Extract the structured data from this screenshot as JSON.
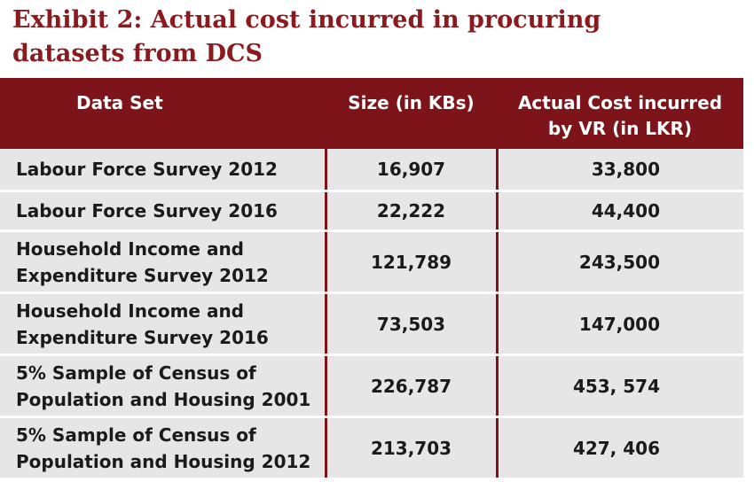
{
  "title": "Exhibit 2: Actual cost incurred in procuring\ndatasets from DCS",
  "table": {
    "headers": {
      "data_set": "Data Set",
      "size": "Size (in KBs)",
      "cost": "Actual Cost incurred\nby VR (in LKR)"
    },
    "rows": [
      {
        "name": "Labour Force Survey 2012",
        "size": "16,907",
        "cost": "33,800"
      },
      {
        "name": "Labour Force Survey 2016",
        "size": "22,222",
        "cost": "44,400"
      },
      {
        "name": "Household Income and\nExpenditure Survey 2012",
        "size": "121,789",
        "cost": "243,500"
      },
      {
        "name": "Household Income and\nExpenditure Survey 2016",
        "size": "73,503",
        "cost": "147,000"
      },
      {
        "name": "5% Sample of Census of\nPopulation and Housing 2001",
        "size": "226,787",
        "cost": "453, 574"
      },
      {
        "name": "5% Sample of Census of\nPopulation and Housing 2012",
        "size": "213,703",
        "cost": "427, 406"
      }
    ]
  }
}
